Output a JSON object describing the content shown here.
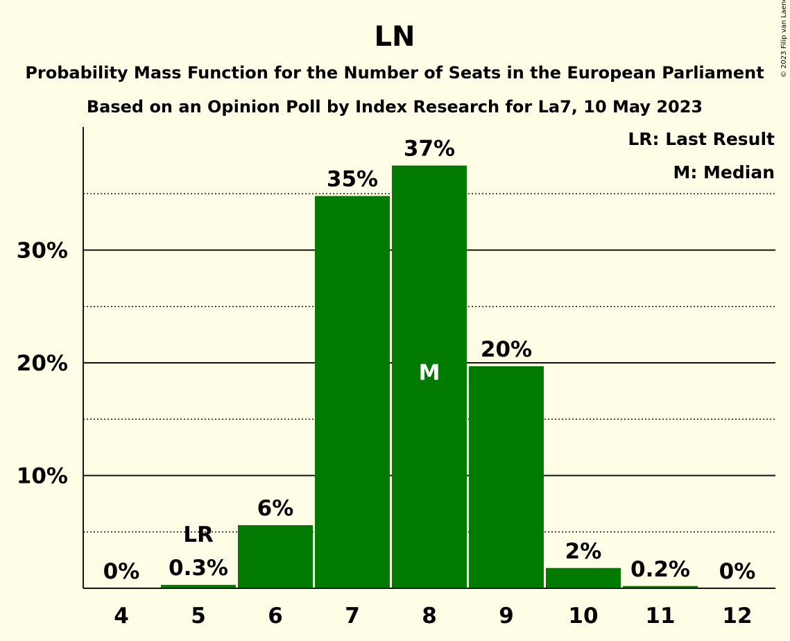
{
  "chart_data": {
    "type": "bar",
    "title": "LN",
    "subtitle": "Probability Mass Function for the Number of Seats in the European Parliament",
    "subtitle2": "Based on an Opinion Poll by Index Research for La7, 10 May 2023",
    "copyright": "© 2023 Filip van Laenen",
    "categories": [
      "4",
      "5",
      "6",
      "7",
      "8",
      "9",
      "10",
      "11",
      "12"
    ],
    "values": [
      0,
      0.3,
      5.6,
      34.8,
      37.5,
      19.7,
      1.8,
      0.2,
      0
    ],
    "value_labels": [
      "0%",
      "0.3%",
      "6%",
      "35%",
      "37%",
      "20%",
      "2%",
      "0.2%",
      "0%"
    ],
    "ylim": [
      0,
      41
    ],
    "y_ticks": [
      {
        "value": 10,
        "label": "10%"
      },
      {
        "value": 20,
        "label": "20%"
      },
      {
        "value": 30,
        "label": "30%"
      }
    ],
    "minor_gridlines": [
      5,
      15,
      25,
      35
    ],
    "last_result_index": 1,
    "last_result_label": "LR",
    "median_index": 4,
    "median_label": "M",
    "legend": [
      "LR: Last Result",
      "M: Median"
    ],
    "legend_position": "top-right",
    "bar_color": "#007A00",
    "background_color": "#FFFDE6"
  }
}
